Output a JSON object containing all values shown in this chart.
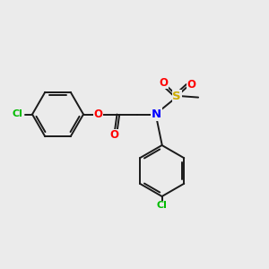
{
  "background_color": "#ebebeb",
  "bond_color": "#1a1a1a",
  "atom_colors": {
    "O": "#ff0000",
    "N": "#0000ff",
    "S": "#ccaa00",
    "Cl": "#00bb00",
    "C": "#1a1a1a"
  },
  "figsize": [
    3.0,
    3.0
  ],
  "dpi": 100,
  "lw": 1.4,
  "fs": 8.5
}
